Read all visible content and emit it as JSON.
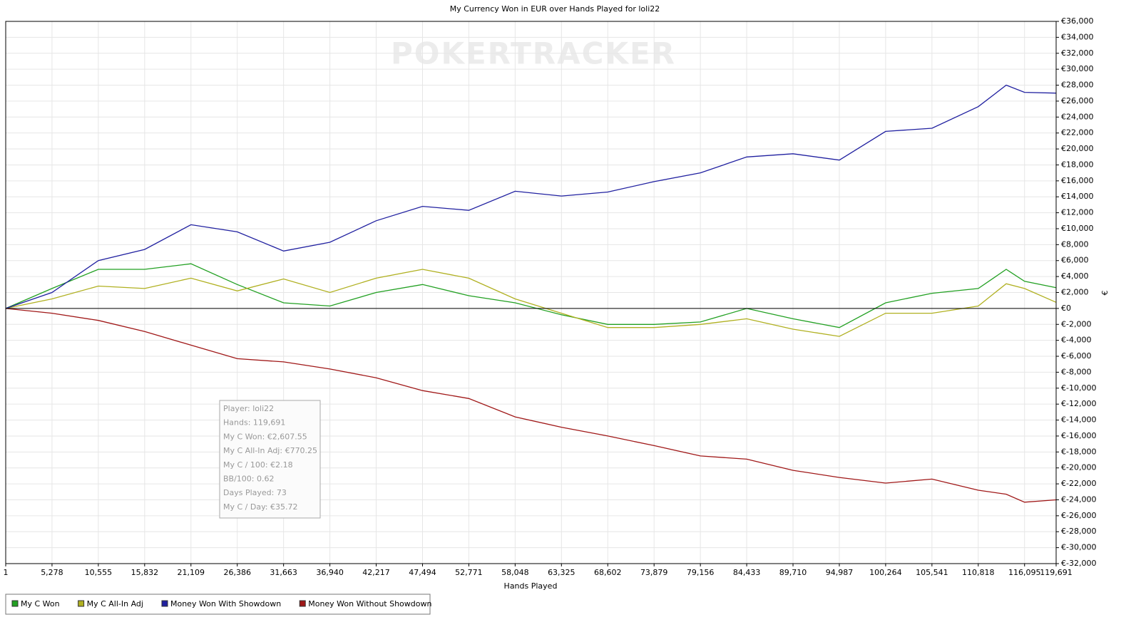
{
  "chart_data": {
    "type": "line",
    "title": "My Currency Won in EUR over Hands Played for loli22",
    "watermark": "POKERTRACKER",
    "x_label": "Hands Played",
    "y_label": "€",
    "grid": true,
    "legend": "bottom-left",
    "xlim": [
      1,
      119691
    ],
    "xticks": [
      1,
      {
        "value": 5278,
        "label": "5,278"
      },
      {
        "value": 10555,
        "label": "10,555"
      },
      {
        "value": 15832,
        "label": "15,832"
      },
      {
        "value": 21109,
        "label": "21,109"
      },
      {
        "value": 26386,
        "label": "26,386"
      },
      {
        "value": 31663,
        "label": "31,663"
      },
      {
        "value": 36940,
        "label": "36,940"
      },
      {
        "value": 42217,
        "label": "42,217"
      },
      {
        "value": 47494,
        "label": "47,494"
      },
      {
        "value": 52771,
        "label": "52,771"
      },
      {
        "value": 58048,
        "label": "58,048"
      },
      {
        "value": 63325,
        "label": "63,325"
      },
      {
        "value": 68602,
        "label": "68,602"
      },
      {
        "value": 73879,
        "label": "73,879"
      },
      {
        "value": 79156,
        "label": "79,156"
      },
      {
        "value": 84433,
        "label": "84,433"
      },
      {
        "value": 89710,
        "label": "89,710"
      },
      {
        "value": 94987,
        "label": "94,987"
      },
      {
        "value": 100264,
        "label": "100,264"
      },
      {
        "value": 105541,
        "label": "105,541"
      },
      {
        "value": 110818,
        "label": "110,818"
      },
      {
        "value": 116095,
        "label": "116,095"
      },
      {
        "value": 119691,
        "label": "119,691"
      }
    ],
    "ylim": [
      -32000,
      36000
    ],
    "yticks": [
      {
        "value": 36000,
        "label": "€36,000"
      },
      {
        "value": 34000,
        "label": "€34,000"
      },
      {
        "value": 32000,
        "label": "€32,000"
      },
      {
        "value": 30000,
        "label": "€30,000"
      },
      {
        "value": 28000,
        "label": "€28,000"
      },
      {
        "value": 26000,
        "label": "€26,000"
      },
      {
        "value": 24000,
        "label": "€24,000"
      },
      {
        "value": 22000,
        "label": "€22,000"
      },
      {
        "value": 20000,
        "label": "€20,000"
      },
      {
        "value": 18000,
        "label": "€18,000"
      },
      {
        "value": 16000,
        "label": "€16,000"
      },
      {
        "value": 14000,
        "label": "€14,000"
      },
      {
        "value": 12000,
        "label": "€12,000"
      },
      {
        "value": 10000,
        "label": "€10,000"
      },
      {
        "value": 8000,
        "label": "€8,000"
      },
      {
        "value": 6000,
        "label": "€6,000"
      },
      {
        "value": 4000,
        "label": "€4,000"
      },
      {
        "value": 2000,
        "label": "€2,000"
      },
      {
        "value": 0,
        "label": "€0"
      },
      {
        "value": -2000,
        "label": "€-2,000"
      },
      {
        "value": -4000,
        "label": "€-4,000"
      },
      {
        "value": -6000,
        "label": "€-6,000"
      },
      {
        "value": -8000,
        "label": "€-8,000"
      },
      {
        "value": -10000,
        "label": "€-10,000"
      },
      {
        "value": -12000,
        "label": "€-12,000"
      },
      {
        "value": -14000,
        "label": "€-14,000"
      },
      {
        "value": -16000,
        "label": "€-16,000"
      },
      {
        "value": -18000,
        "label": "€-18,000"
      },
      {
        "value": -20000,
        "label": "€-20,000"
      },
      {
        "value": -22000,
        "label": "€-22,000"
      },
      {
        "value": -24000,
        "label": "€-24,000"
      },
      {
        "value": -26000,
        "label": "€-26,000"
      },
      {
        "value": -28000,
        "label": "€-28,000"
      },
      {
        "value": -30000,
        "label": "€-30,000"
      },
      {
        "value": -32000,
        "label": "€-32,000"
      }
    ],
    "x": [
      1,
      5278,
      10555,
      15832,
      21109,
      26386,
      31663,
      36940,
      42217,
      47494,
      52771,
      58048,
      63325,
      68602,
      73879,
      79156,
      84433,
      89710,
      94987,
      100264,
      105541,
      110818,
      114000,
      116095,
      119691
    ],
    "series": [
      {
        "name": "My C Won",
        "color": "#22a022",
        "values": [
          0,
          2500,
          4900,
          4900,
          5600,
          3000,
          700,
          300,
          2000,
          3000,
          1600,
          700,
          -800,
          -2000,
          -2000,
          -1700,
          0,
          -1300,
          -2400,
          700,
          1900,
          2500,
          4900,
          3400,
          2607.55
        ]
      },
      {
        "name": "My C All-In Adj",
        "color": "#b0b020",
        "values": [
          0,
          1200,
          2800,
          2500,
          3800,
          2200,
          3700,
          2000,
          3800,
          4900,
          3800,
          1200,
          -600,
          -2400,
          -2400,
          -2000,
          -1300,
          -2600,
          -3500,
          -600,
          -600,
          300,
          3100,
          2500,
          770.25
        ]
      },
      {
        "name": "Money Won With Showdown",
        "color": "#2020a0",
        "values": [
          0,
          2000,
          6000,
          7400,
          10500,
          9600,
          7200,
          8300,
          11000,
          12800,
          12300,
          14700,
          14100,
          14600,
          15900,
          17000,
          19000,
          19400,
          18600,
          22200,
          22600,
          25300,
          28000,
          27100,
          27000
        ]
      },
      {
        "name": "Money Won Without Showdown",
        "color": "#a01818",
        "values": [
          0,
          -600,
          -1500,
          -2900,
          -4600,
          -6300,
          -6700,
          -7600,
          -8700,
          -10300,
          -11300,
          -13600,
          -14900,
          -16000,
          -17200,
          -18500,
          -18900,
          -20300,
          -21200,
          -21900,
          -21400,
          -22800,
          -23300,
          -24300,
          -24000
        ]
      }
    ],
    "tooltip": [
      "Player: loli22",
      "Hands: 119,691",
      "My C Won: €2,607.55",
      "My C All-In Adj: €770.25",
      "My C / 100: €2.18",
      "BB/100: 0.62",
      "Days Played: 73",
      "My C / Day: €35.72"
    ]
  }
}
